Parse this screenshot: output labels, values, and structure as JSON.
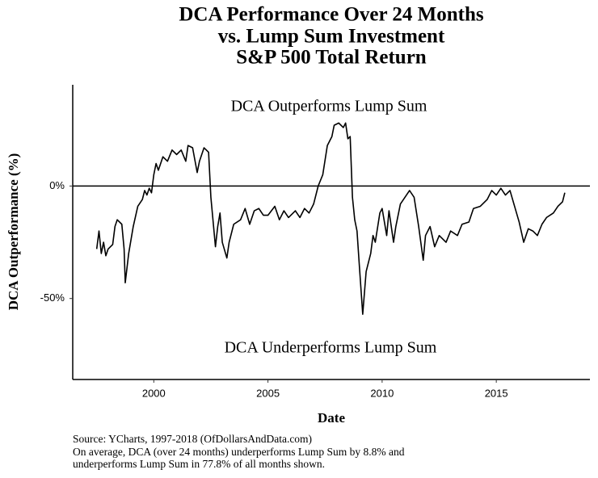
{
  "chart_data": {
    "type": "line",
    "title": [
      "DCA Performance Over 24 Months",
      "vs. Lump Sum Investment",
      "S&P 500 Total Return"
    ],
    "x_label": "Date",
    "y_label": "DCA Outperformance (%)",
    "annotations": [
      "DCA Outperforms Lump Sum",
      "DCA Underperforms Lump Sum"
    ],
    "notes": [
      "Source:  YCharts, 1997-2018 (OfDollarsAndData.com)",
      "On average, DCA (over 24 months) underperforms Lump Sum by 8.8% and",
      "underperforms Lump Sum in 77.8% of all months shown."
    ],
    "xlim": [
      1996.45,
      2019.1
    ],
    "xticks": [
      2000,
      2005,
      2010,
      2015
    ],
    "ylim": [
      -86,
      45
    ],
    "yticks": [
      {
        "value": 0,
        "label": "0%"
      },
      {
        "value": -50,
        "label": "-50%"
      }
    ],
    "reference_line": 0,
    "color": "#000000",
    "x": [
      1997.5,
      1997.6,
      1997.7,
      1997.8,
      1997.9,
      1998.0,
      1998.2,
      1998.3,
      1998.4,
      1998.6,
      1998.7,
      1998.75,
      1998.9,
      1999.1,
      1999.3,
      1999.5,
      1999.6,
      1999.7,
      1999.8,
      1999.9,
      2000.0,
      2000.1,
      2000.2,
      2000.4,
      2000.6,
      2000.8,
      2001.0,
      2001.2,
      2001.4,
      2001.5,
      2001.7,
      2001.9,
      2002.0,
      2002.2,
      2002.4,
      2002.5,
      2002.7,
      2002.8,
      2002.9,
      2003.0,
      2003.2,
      2003.3,
      2003.5,
      2003.8,
      2004.0,
      2004.2,
      2004.4,
      2004.6,
      2004.8,
      2005.0,
      2005.3,
      2005.5,
      2005.7,
      2005.9,
      2006.2,
      2006.4,
      2006.6,
      2006.8,
      2007.0,
      2007.2,
      2007.4,
      2007.6,
      2007.8,
      2007.9,
      2008.1,
      2008.3,
      2008.4,
      2008.5,
      2008.6,
      2008.7,
      2008.8,
      2008.9,
      2009.0,
      2009.15,
      2009.3,
      2009.5,
      2009.6,
      2009.7,
      2009.9,
      2010.0,
      2010.2,
      2010.3,
      2010.5,
      2010.6,
      2010.8,
      2011.0,
      2011.2,
      2011.4,
      2011.6,
      2011.8,
      2011.9,
      2012.1,
      2012.3,
      2012.5,
      2012.8,
      2013.0,
      2013.3,
      2013.5,
      2013.8,
      2014.0,
      2014.3,
      2014.6,
      2014.8,
      2015.0,
      2015.2,
      2015.4,
      2015.6,
      2015.8,
      2016.0,
      2016.2,
      2016.4,
      2016.6,
      2016.8,
      2017.0,
      2017.2,
      2017.5,
      2017.7,
      2017.9,
      2018.0
    ],
    "values": [
      -28,
      -20,
      -30,
      -25,
      -31,
      -28,
      -26,
      -18,
      -15,
      -17,
      -28,
      -43,
      -30,
      -18,
      -9,
      -6,
      -2,
      -4,
      -1,
      -3,
      5,
      10,
      7,
      13,
      11,
      16,
      14,
      16,
      11,
      18,
      17,
      6,
      11,
      17,
      15,
      -5,
      -27,
      -18,
      -12,
      -25,
      -32,
      -25,
      -17,
      -15,
      -10,
      -17,
      -11,
      -10,
      -13,
      -13,
      -9,
      -15,
      -11,
      -14,
      -11,
      -14,
      -10,
      -12,
      -8,
      0,
      5,
      18,
      22,
      27,
      28,
      26,
      28,
      21,
      22,
      -5,
      -15,
      -20,
      -35,
      -57,
      -38,
      -30,
      -22,
      -25,
      -12,
      -10,
      -22,
      -11,
      -25,
      -18,
      -8,
      -5,
      -2,
      -5,
      -18,
      -33,
      -22,
      -18,
      -27,
      -22,
      -25,
      -20,
      -22,
      -17,
      -16,
      -10,
      -9,
      -6,
      -2,
      -4,
      -1,
      -4,
      -2,
      -9,
      -16,
      -25,
      -19,
      -20,
      -22,
      -17,
      -14,
      -12,
      -9,
      -7,
      -3
    ]
  }
}
